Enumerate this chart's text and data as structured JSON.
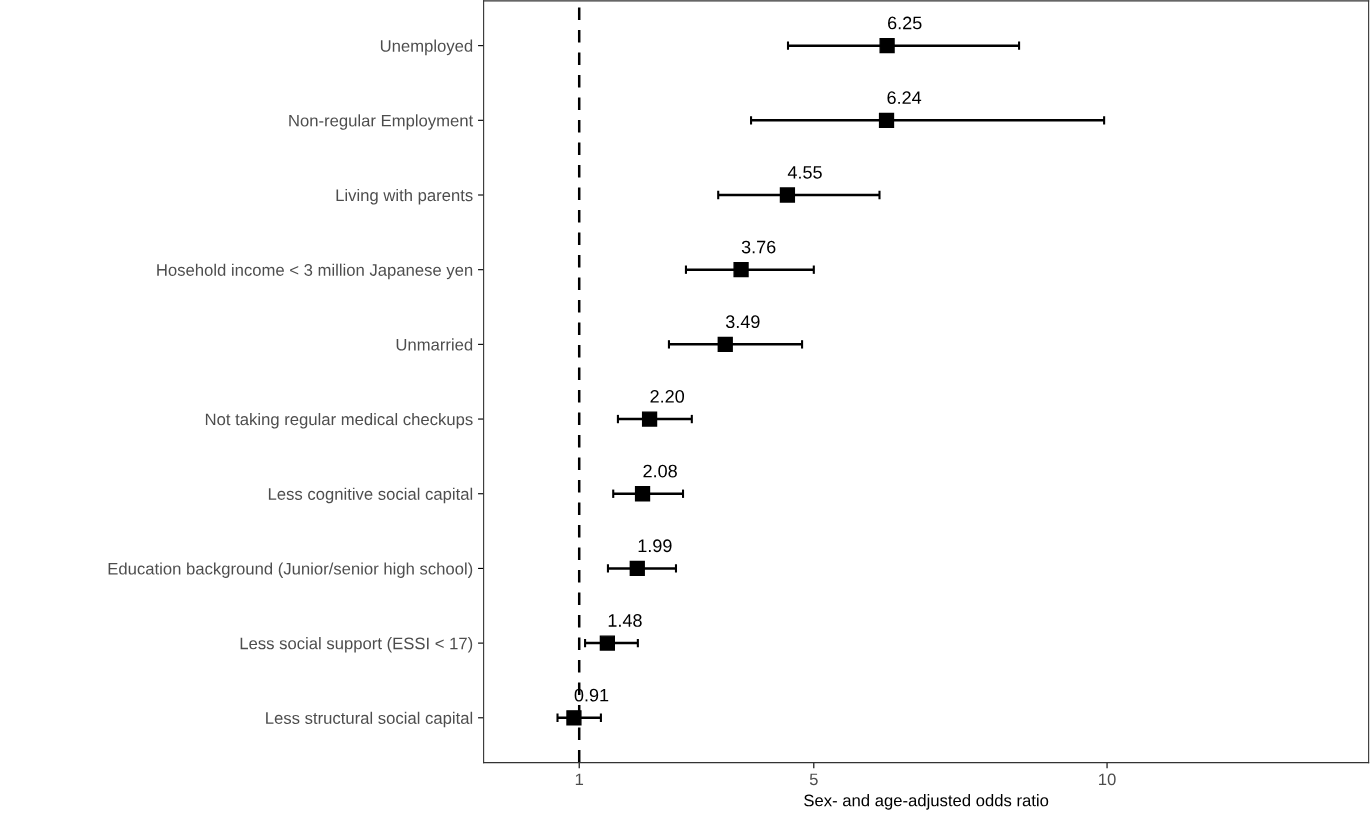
{
  "chart_data": {
    "type": "scatter",
    "orientation": "horizontal",
    "xlabel": "Sex- and age-adjusted odds ratio",
    "categories": [
      "Unemployed",
      "Non-regular Employment",
      "Living with parents",
      "Hosehold income < 3 million Japanese yen",
      "Unmarried",
      "Not taking regular medical checkups",
      "Less cognitive social capital",
      "Education background (Junior/senior high school)",
      "Less social support (ESSI < 17)",
      "Less structural social capital"
    ],
    "values": [
      6.25,
      6.24,
      4.55,
      3.76,
      3.49,
      2.2,
      2.08,
      1.99,
      1.48,
      0.91
    ],
    "errors": [
      [
        4.56,
        8.5
      ],
      [
        3.93,
        9.95
      ],
      [
        3.37,
        6.12
      ],
      [
        2.82,
        5.0
      ],
      [
        2.53,
        4.8
      ],
      [
        1.66,
        2.92
      ],
      [
        1.58,
        2.77
      ],
      [
        1.49,
        2.65
      ],
      [
        1.1,
        2.0
      ],
      [
        0.63,
        1.37
      ]
    ],
    "value_labels": [
      "6.25",
      "6.24",
      "4.55",
      "3.76",
      "3.49",
      "2.20",
      "2.08",
      "1.99",
      "1.48",
      "0.91"
    ],
    "color": "#000000",
    "marker": "square",
    "xlim": [
      -0.63,
      14.46
    ],
    "xticks": [
      1,
      5,
      10
    ],
    "ref_lines": [
      {
        "axis": "x",
        "value": 1,
        "line_style": "dashed",
        "color": "#000000"
      }
    ],
    "grid": false
  }
}
